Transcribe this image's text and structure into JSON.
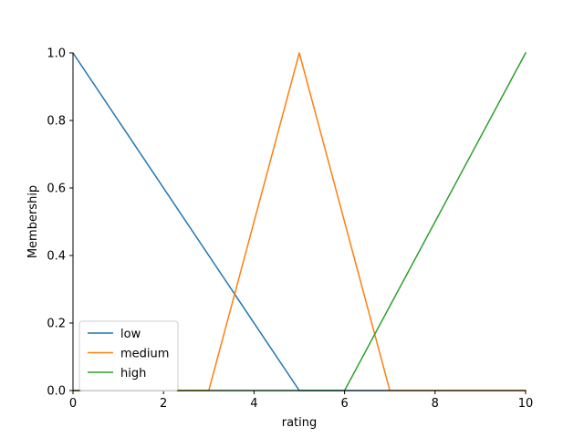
{
  "chart_data": {
    "type": "line",
    "title": "",
    "xlabel": "rating",
    "ylabel": "Membership",
    "xlim": [
      0,
      10
    ],
    "ylim": [
      0,
      1
    ],
    "xticks": [
      0,
      2,
      4,
      6,
      8,
      10
    ],
    "yticks": [
      0.0,
      0.2,
      0.4,
      0.6,
      0.8,
      1.0
    ],
    "xtick_labels": [
      "0",
      "2",
      "4",
      "6",
      "8",
      "10"
    ],
    "ytick_labels": [
      "0.0",
      "0.2",
      "0.4",
      "0.6",
      "0.8",
      "1.0"
    ],
    "grid": false,
    "legend_position": "lower-left",
    "series": [
      {
        "name": "low",
        "color": "#1f77b4",
        "x": [
          0,
          5,
          10
        ],
        "y": [
          1,
          0,
          0
        ]
      },
      {
        "name": "medium",
        "color": "#ff7f0e",
        "x": [
          0,
          3,
          5,
          7,
          10
        ],
        "y": [
          0,
          0,
          1,
          0,
          0
        ]
      },
      {
        "name": "high",
        "color": "#2ca02c",
        "x": [
          0,
          6,
          10
        ],
        "y": [
          0,
          0,
          1
        ]
      }
    ]
  }
}
